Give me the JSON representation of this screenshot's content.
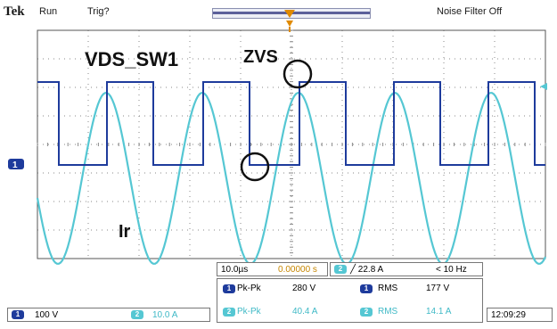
{
  "header": {
    "brand": "Tek",
    "run_state": "Run",
    "trigger_state": "Trig?",
    "noise_filter": "Noise Filter Off"
  },
  "annotations": {
    "vds_label": "VDS_SW1",
    "zvs_label": "ZVS",
    "ir_label": "Ir"
  },
  "markers": {
    "ch1_ground": "1"
  },
  "timebase": {
    "scale": "10.0µs",
    "trigger_position": "0.00000 s"
  },
  "trigger": {
    "channel": "2",
    "level": "╱ 22.8 A",
    "filter": "< 10 Hz"
  },
  "channels": [
    {
      "id": "1",
      "scale": "100 V",
      "color": "#1e3b9c"
    },
    {
      "id": "2",
      "scale": "10.0 A",
      "color": "#55c7d3"
    }
  ],
  "measurements": {
    "ch1": {
      "badge": "1",
      "pkpk_label": "Pk-Pk",
      "pkpk_value": "280 V",
      "rms_label": "RMS",
      "rms_value": "177 V"
    },
    "ch2": {
      "badge": "2",
      "pkpk_label": "Pk-Pk",
      "pkpk_value": "40.4 A",
      "rms_label": "RMS",
      "rms_value": "14.1 A"
    }
  },
  "clock": "12:09:29",
  "colors": {
    "ch1": "#1e3b9c",
    "ch2": "#55c7d3",
    "trigger": "#e08a00",
    "grid": "#8a8a8a"
  }
}
